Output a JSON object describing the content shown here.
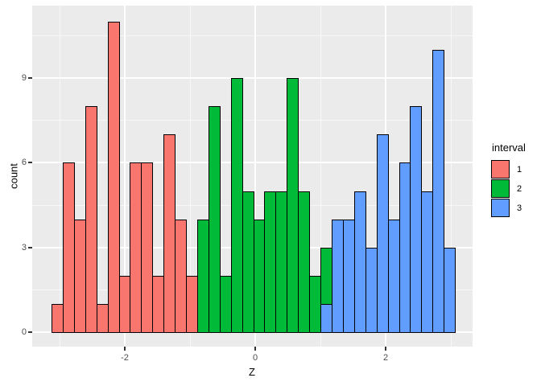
{
  "colors": {
    "background": "#FFFFFF",
    "panel": "#EBEBEB",
    "grid": "#FFFFFF",
    "tick": "#333333",
    "tick_label": "#4D4D4D",
    "bar_border": "#000000"
  },
  "chart_data": {
    "type": "bar",
    "subtype": "histogram",
    "title": "",
    "xlabel": "Z",
    "ylabel": "count",
    "x_ticks": [
      {
        "label": "-2",
        "value": -2
      },
      {
        "label": "0",
        "value": 0
      },
      {
        "label": "2",
        "value": 2
      }
    ],
    "x_minor": [
      -3,
      -1,
      1,
      3
    ],
    "y_ticks": [
      {
        "label": "0",
        "value": 0
      },
      {
        "label": "3",
        "value": 3
      },
      {
        "label": "6",
        "value": 6
      },
      {
        "label": "9",
        "value": 9
      }
    ],
    "y_minor": [
      1.5,
      4.5,
      7.5,
      10.5
    ],
    "xlim": [
      -3.45,
      3.35
    ],
    "ylim": [
      -0.55,
      11.55
    ],
    "grid": true,
    "legend": {
      "title": "interval",
      "position": "right",
      "entries": [
        {
          "label": "1",
          "color": "#F8766D"
        },
        {
          "label": "2",
          "color": "#00BA38"
        },
        {
          "label": "3",
          "color": "#619CFF"
        }
      ]
    },
    "bars": [
      {
        "segments": [
          {
            "interval": "1",
            "count": 1
          }
        ]
      },
      {
        "segments": [
          {
            "interval": "1",
            "count": 6
          }
        ]
      },
      {
        "segments": [
          {
            "interval": "1",
            "count": 4
          }
        ]
      },
      {
        "segments": [
          {
            "interval": "1",
            "count": 8
          }
        ]
      },
      {
        "segments": [
          {
            "interval": "1",
            "count": 1
          }
        ]
      },
      {
        "segments": [
          {
            "interval": "1",
            "count": 11
          }
        ]
      },
      {
        "segments": [
          {
            "interval": "1",
            "count": 2
          }
        ]
      },
      {
        "segments": [
          {
            "interval": "1",
            "count": 6
          }
        ]
      },
      {
        "segments": [
          {
            "interval": "1",
            "count": 6
          }
        ]
      },
      {
        "segments": [
          {
            "interval": "1",
            "count": 2
          }
        ]
      },
      {
        "segments": [
          {
            "interval": "1",
            "count": 7
          }
        ]
      },
      {
        "segments": [
          {
            "interval": "1",
            "count": 4
          }
        ]
      },
      {
        "segments": [
          {
            "interval": "1",
            "count": 2
          }
        ]
      },
      {
        "segments": [
          {
            "interval": "2",
            "count": 4
          }
        ]
      },
      {
        "segments": [
          {
            "interval": "2",
            "count": 8
          }
        ]
      },
      {
        "segments": [
          {
            "interval": "2",
            "count": 2
          }
        ]
      },
      {
        "segments": [
          {
            "interval": "2",
            "count": 9
          }
        ]
      },
      {
        "segments": [
          {
            "interval": "2",
            "count": 5
          }
        ]
      },
      {
        "segments": [
          {
            "interval": "2",
            "count": 4
          }
        ]
      },
      {
        "segments": [
          {
            "interval": "2",
            "count": 5
          }
        ]
      },
      {
        "segments": [
          {
            "interval": "2",
            "count": 5
          }
        ]
      },
      {
        "segments": [
          {
            "interval": "2",
            "count": 9
          }
        ]
      },
      {
        "segments": [
          {
            "interval": "2",
            "count": 5
          }
        ]
      },
      {
        "segments": [
          {
            "interval": "2",
            "count": 2
          }
        ]
      },
      {
        "segments": [
          {
            "interval": "3",
            "count": 1
          },
          {
            "interval": "2",
            "count": 2
          }
        ]
      },
      {
        "segments": [
          {
            "interval": "3",
            "count": 4
          }
        ]
      },
      {
        "segments": [
          {
            "interval": "3",
            "count": 4
          }
        ]
      },
      {
        "segments": [
          {
            "interval": "3",
            "count": 5
          }
        ]
      },
      {
        "segments": [
          {
            "interval": "3",
            "count": 3
          }
        ]
      },
      {
        "segments": [
          {
            "interval": "3",
            "count": 7
          }
        ]
      },
      {
        "segments": [
          {
            "interval": "3",
            "count": 4
          }
        ]
      },
      {
        "segments": [
          {
            "interval": "3",
            "count": 6
          }
        ]
      },
      {
        "segments": [
          {
            "interval": "3",
            "count": 8
          }
        ]
      },
      {
        "segments": [
          {
            "interval": "3",
            "count": 5
          }
        ]
      },
      {
        "segments": [
          {
            "interval": "3",
            "count": 10
          }
        ]
      },
      {
        "segments": [
          {
            "interval": "3",
            "count": 3
          }
        ]
      }
    ]
  }
}
